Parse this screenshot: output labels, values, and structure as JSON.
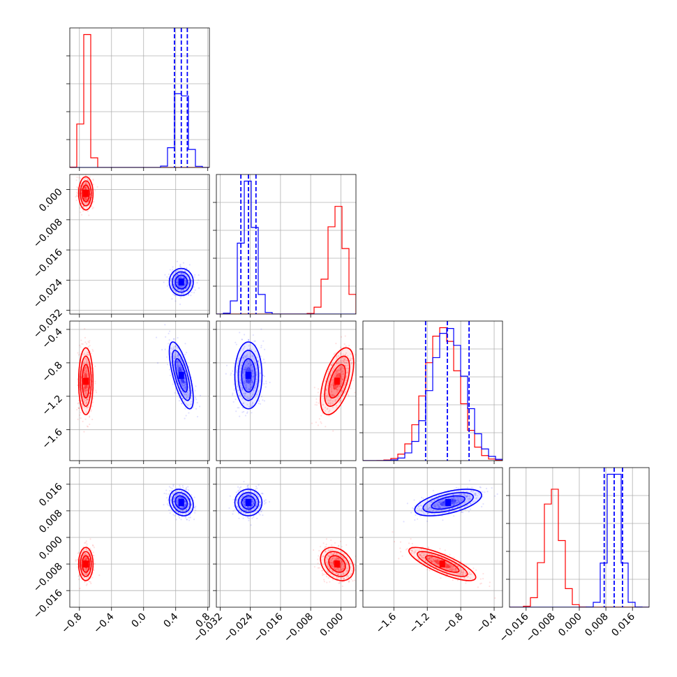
{
  "chart_data": {
    "type": "corner",
    "parameters": 4,
    "series": [
      {
        "color": "#ff0000",
        "means": [
          -0.72,
          -0.001,
          -1.02,
          -0.008
        ],
        "sds": [
          0.045,
          0.0022,
          0.2,
          0.0025
        ],
        "correlations": {
          "2-1": 0.55,
          "3-2": -0.8,
          "3-1": -0.3
        }
      },
      {
        "color": "#0000ff",
        "means": [
          0.47,
          -0.0245,
          -0.95,
          0.0105
        ],
        "sds": [
          0.075,
          0.0018,
          0.2,
          0.002
        ],
        "correlations": {
          "2-0": -0.7,
          "3-2": 0.55,
          "3-0": -0.2
        },
        "quantile_lines": [
          [
            0.385,
            0.47,
            0.545
          ],
          [
            -0.0265,
            -0.0245,
            -0.0225
          ],
          [
            -1.22,
            -0.96,
            -0.7
          ],
          [
            0.0075,
            0.0105,
            0.013
          ]
        ]
      }
    ],
    "axes": [
      {
        "range": [
          -0.92,
          0.82
        ],
        "ticks": [
          "−0.8",
          "−0.4",
          "0.0",
          "0.4",
          "0.8"
        ],
        "tick_values": [
          -0.8,
          -0.4,
          0.0,
          0.4,
          0.8
        ]
      },
      {
        "range": [
          -0.033,
          0.004
        ],
        "ticks": [
          "−0.032",
          "−0.024",
          "−0.016",
          "−0.008",
          "0.000"
        ],
        "tick_values": [
          -0.032,
          -0.024,
          -0.016,
          -0.008,
          0.0
        ]
      },
      {
        "range": [
          -1.97,
          -0.3
        ],
        "ticks": [
          "−1.6",
          "−1.2",
          "−0.8",
          "−0.4"
        ],
        "tick_values": [
          -1.6,
          -1.2,
          -0.8,
          -0.4
        ]
      },
      {
        "range": [
          -0.021,
          0.021
        ],
        "ticks": [
          "−0.016",
          "−0.008",
          "0.000",
          "0.008",
          "0.016"
        ],
        "tick_values": [
          -0.016,
          -0.008,
          0.0,
          0.008,
          0.016
        ]
      }
    ],
    "grid": true,
    "legend": "none"
  }
}
